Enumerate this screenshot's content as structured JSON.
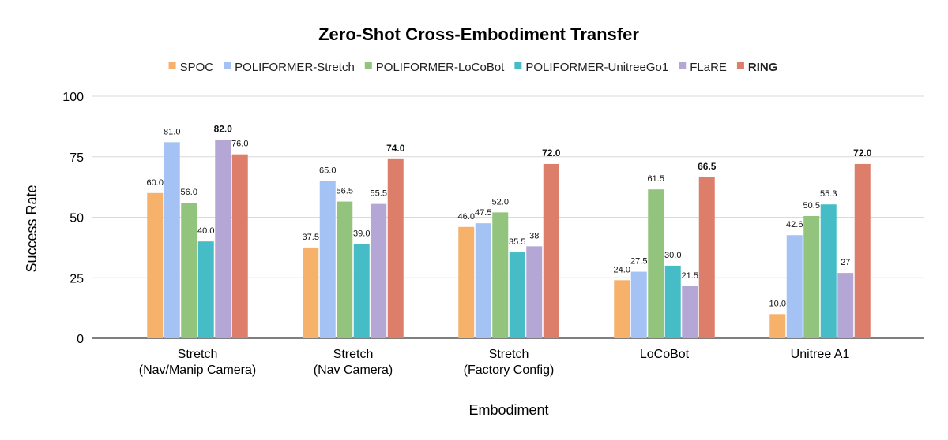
{
  "chart_data": {
    "type": "bar",
    "title": "Zero-Shot Cross-Embodiment Transfer",
    "xlabel": "Embodiment",
    "ylabel": "Success Rate",
    "ylim": [
      0,
      100
    ],
    "yticks": [
      "0",
      "25",
      "50",
      "75",
      "100"
    ],
    "grid": true,
    "legend_position": "top",
    "categories": [
      [
        "Stretch",
        "(Nav/Manip Camera)"
      ],
      [
        "Stretch",
        "(Nav Camera)"
      ],
      [
        "Stretch",
        "(Factory Config)"
      ],
      [
        "LoCoBot"
      ],
      [
        "Unitree A1"
      ]
    ],
    "series": [
      {
        "name": "SPOC",
        "color": "#F6B26B",
        "bold": false,
        "values": [
          60.0,
          37.5,
          46.0,
          24.0,
          10.0
        ],
        "labels": [
          "60.0",
          "37.5",
          "46.0",
          "24.0",
          "10.0"
        ]
      },
      {
        "name": "POLIFORMER-Stretch",
        "color": "#A4C2F4",
        "bold": false,
        "values": [
          81.0,
          65.0,
          47.5,
          27.5,
          42.6
        ],
        "labels": [
          "81.0",
          "65.0",
          "47.5",
          "27.5",
          "42.6"
        ]
      },
      {
        "name": "POLIFORMER-LoCoBot",
        "color": "#93C47D",
        "bold": false,
        "values": [
          56.0,
          56.5,
          52.0,
          61.5,
          50.5
        ],
        "labels": [
          "56.0",
          "56.5",
          "52.0",
          "61.5",
          "50.5"
        ]
      },
      {
        "name": "POLIFORMER-UnitreeGo1",
        "color": "#46BDC6",
        "bold": false,
        "values": [
          40.0,
          39.0,
          35.5,
          30.0,
          55.3
        ],
        "labels": [
          "40.0",
          "39.0",
          "35.5",
          "30.0",
          "55.3"
        ]
      },
      {
        "name": "FLaRE",
        "color": "#B4A7D6",
        "bold": false,
        "values": [
          82.0,
          55.5,
          38,
          21.5,
          27
        ],
        "labels": [
          "82.0",
          "55.5",
          "38",
          "21.5",
          "27"
        ],
        "bold_labels": [
          true,
          false,
          false,
          false,
          false
        ]
      },
      {
        "name": "RING",
        "color": "#DD7E6B",
        "bold": true,
        "values": [
          76.0,
          74.0,
          72.0,
          66.5,
          72.0
        ],
        "labels": [
          "76.0",
          "74.0",
          "72.0",
          "66.5",
          "72.0"
        ],
        "bold_labels": [
          false,
          true,
          true,
          true,
          true
        ]
      }
    ]
  }
}
